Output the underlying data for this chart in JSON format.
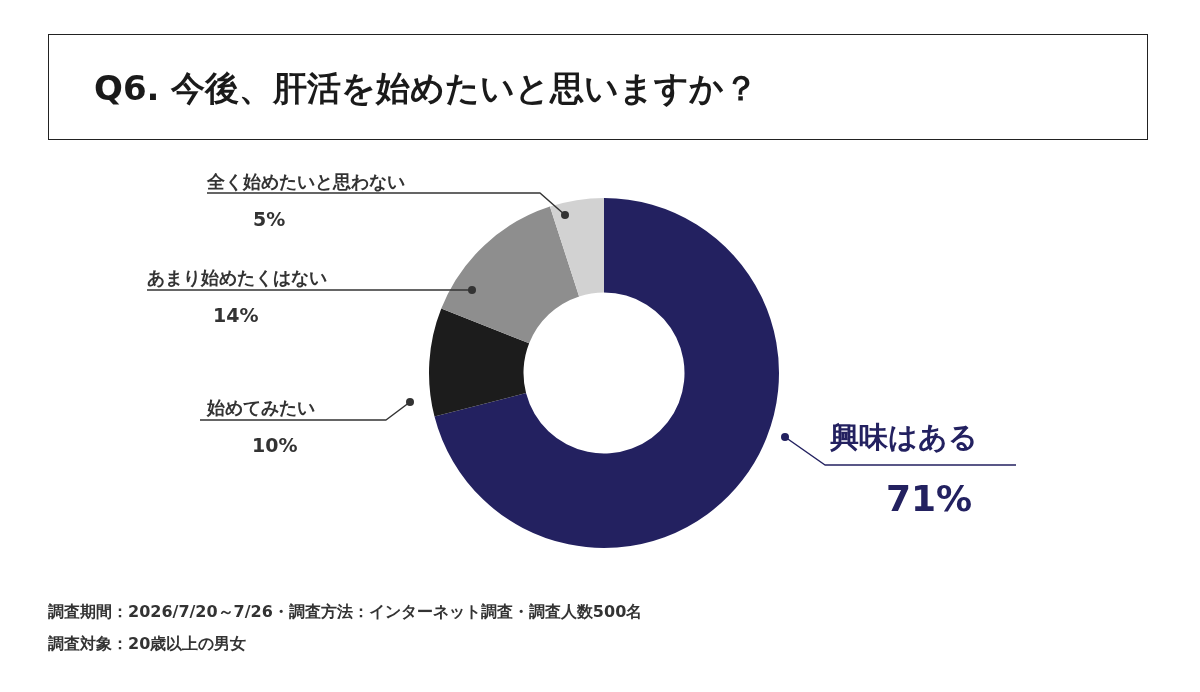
{
  "chart_data": {
    "type": "donut",
    "title": "Q6. 今後、肝活を始めたいと思いますか？",
    "categories": [
      "興味はある",
      "始めてみたい",
      "あまり始めたくはない",
      "全く始めたいと思わない"
    ],
    "values": [
      71,
      10,
      14,
      5
    ],
    "colors": [
      "#232160",
      "#1c1c1c",
      "#8e8e8e",
      "#d2d2d2"
    ],
    "value_labels": [
      "71%",
      "10%",
      "14%",
      "5%"
    ],
    "annotations": [
      "調査期間：2026/7/20～7/26・調査方法：インターネット調査・調査人数500名",
      "調査対象：20歳以上の男女"
    ]
  }
}
